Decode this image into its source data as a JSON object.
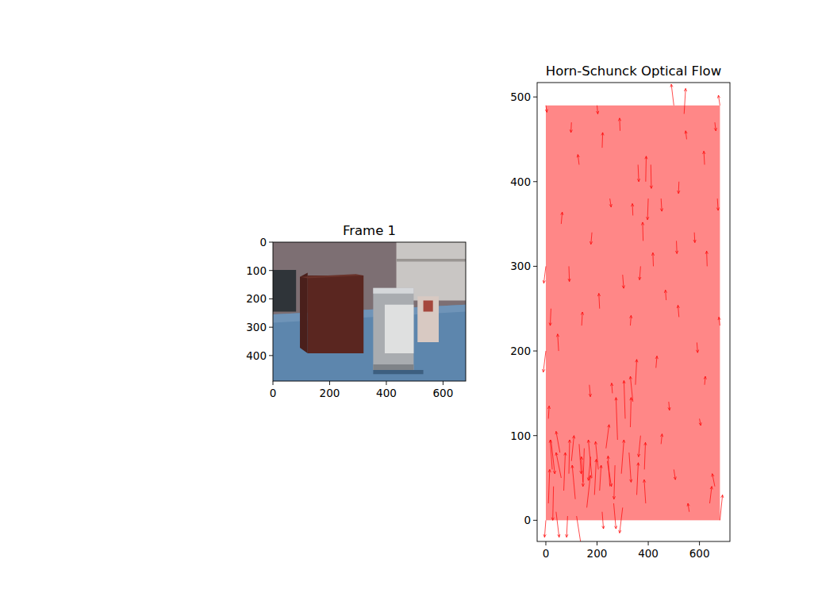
{
  "chart_data": [
    {
      "type": "image",
      "title": "Frame 1",
      "xlim": [
        0,
        680
      ],
      "ylim": [
        490,
        0
      ],
      "xticks": [
        0,
        200,
        400,
        600
      ],
      "yticks": [
        0,
        100,
        200,
        300,
        400
      ]
    },
    {
      "type": "quiver",
      "title": "Horn-Schunck Optical Flow",
      "color": "red",
      "xlim": [
        -34,
        719
      ],
      "ylim": [
        -25,
        517
      ],
      "xticks": [
        0,
        200,
        400,
        600
      ],
      "yticks": [
        0,
        100,
        200,
        300,
        400,
        500
      ],
      "x": [
        10,
        25,
        40,
        55,
        70,
        85,
        100,
        115,
        130,
        145,
        160,
        175,
        190,
        205,
        220,
        235,
        250,
        265,
        280,
        295,
        310,
        325,
        340,
        355,
        370,
        385,
        20,
        60,
        120,
        180,
        240,
        300,
        350,
        30,
        90,
        150,
        210,
        270,
        330,
        390,
        10,
        50,
        90,
        130,
        170,
        210,
        250,
        290,
        330,
        370,
        390,
        400,
        410,
        430,
        470,
        510,
        550,
        590,
        630,
        670,
        680,
        600,
        640,
        660,
        500,
        560,
        450,
        20,
        60,
        100,
        140,
        180,
        220,
        260,
        300,
        340,
        360,
        380,
        480,
        520,
        580,
        620,
        660,
        540,
        500,
        200,
        0,
        680,
        0,
        680,
        0,
        0,
        450,
        420,
        620,
        520
      ],
      "y": [
        20,
        60,
        10,
        80,
        35,
        5,
        70,
        25,
        90,
        45,
        15,
        75,
        30,
        60,
        10,
        85,
        40,
        20,
        95,
        55,
        120,
        80,
        140,
        30,
        100,
        60,
        95,
        50,
        5,
        50,
        70,
        15,
        160,
        40,
        55,
        85,
        35,
        65,
        110,
        20,
        120,
        200,
        300,
        420,
        160,
        250,
        380,
        460,
        230,
        300,
        400,
        380,
        420,
        180,
        260,
        330,
        450,
        210,
        300,
        380,
        230,
        120,
        20,
        40,
        60,
        10,
        90,
        250,
        350,
        470,
        230,
        340,
        440,
        150,
        290,
        360,
        420,
        330,
        140,
        240,
        340,
        420,
        470,
        480,
        490,
        490,
        0,
        0,
        490,
        490,
        300,
        200,
        380,
        300,
        160,
        400
      ],
      "u": [
        5,
        -8,
        12,
        -15,
        6,
        -4,
        10,
        -12,
        8,
        -6,
        14,
        -9,
        7,
        -11,
        5,
        12,
        -7,
        9,
        -6,
        10,
        -5,
        8,
        -10,
        6,
        -8,
        4,
        15,
        -20,
        18,
        -14,
        16,
        -12,
        5,
        -3,
        3,
        -5,
        6,
        -4,
        3,
        -6,
        3,
        -4,
        2,
        -5,
        4,
        -3,
        5,
        -2,
        3,
        -4,
        2,
        -3,
        2,
        4,
        -3,
        2,
        -4,
        3,
        -2,
        3,
        -4,
        5,
        8,
        -10,
        6,
        -5,
        4,
        -3,
        4,
        -2,
        3,
        -4,
        2,
        -3,
        4,
        -2,
        3,
        -2,
        3,
        -4,
        2,
        -3,
        4,
        6,
        -10,
        3,
        -5,
        10,
        4,
        -6,
        -8,
        -10,
        3,
        -2,
        3,
        -2
      ],
      "v": [
        40,
        35,
        -30,
        25,
        45,
        -25,
        30,
        40,
        -35,
        30,
        38,
        -28,
        42,
        33,
        -20,
        28,
        36,
        -30,
        50,
        40,
        45,
        -35,
        30,
        38,
        -25,
        32,
        -40,
        30,
        -35,
        45,
        -30,
        -30,
        30,
        -40,
        40,
        -45,
        30,
        -40,
        35,
        28,
        15,
        20,
        -18,
        12,
        -14,
        18,
        -10,
        15,
        12,
        -16,
        30,
        -25,
        -28,
        14,
        12,
        -15,
        10,
        -12,
        18,
        -14,
        10,
        -8,
        20,
        15,
        -12,
        10,
        12,
        -20,
        14,
        -12,
        16,
        -14,
        18,
        12,
        -16,
        14,
        -20,
        22,
        -10,
        14,
        -12,
        16,
        -10,
        30,
        25,
        -10,
        -20,
        30,
        -8,
        12,
        -20,
        -25,
        -15,
        16,
        10,
        -14
      ]
    }
  ]
}
